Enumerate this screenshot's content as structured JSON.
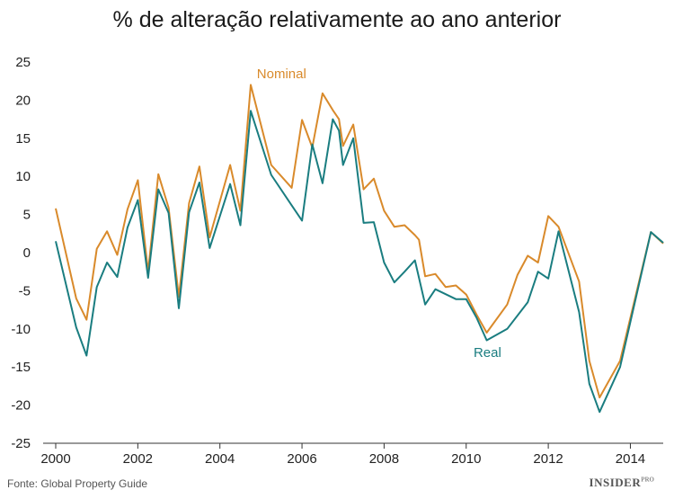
{
  "chart_data": {
    "type": "line",
    "title": "% de alteração relativamente ao ano anterior",
    "xlabel": "",
    "ylabel": "",
    "xlim": [
      2000,
      2014.8
    ],
    "ylim": [
      -25,
      25
    ],
    "x_ticks": [
      2000,
      2002,
      2004,
      2006,
      2008,
      2010,
      2012,
      2014
    ],
    "y_ticks": [
      -25,
      -20,
      -15,
      -10,
      -5,
      0,
      5,
      10,
      15,
      20,
      25
    ],
    "grid": false,
    "series": [
      {
        "name": "Nominal",
        "color": "#d98a2b",
        "points": [
          [
            2000.0,
            5.8
          ],
          [
            2000.5,
            -6.0
          ],
          [
            2000.75,
            -8.8
          ],
          [
            2001.0,
            0.5
          ],
          [
            2001.25,
            2.8
          ],
          [
            2001.5,
            -0.3
          ],
          [
            2001.75,
            5.7
          ],
          [
            2002.0,
            9.5
          ],
          [
            2002.25,
            -2.5
          ],
          [
            2002.5,
            10.3
          ],
          [
            2002.75,
            5.9
          ],
          [
            2003.0,
            -5.8
          ],
          [
            2003.25,
            6.5
          ],
          [
            2003.5,
            11.3
          ],
          [
            2003.75,
            2.0
          ],
          [
            2004.25,
            11.5
          ],
          [
            2004.5,
            5.5
          ],
          [
            2004.75,
            22.0
          ],
          [
            2005.25,
            11.5
          ],
          [
            2005.75,
            8.5
          ],
          [
            2006.0,
            17.4
          ],
          [
            2006.25,
            13.8
          ],
          [
            2006.5,
            20.9
          ],
          [
            2006.75,
            18.7
          ],
          [
            2006.9,
            17.5
          ],
          [
            2007.0,
            14.0
          ],
          [
            2007.25,
            16.8
          ],
          [
            2007.5,
            8.3
          ],
          [
            2007.75,
            9.7
          ],
          [
            2008.0,
            5.5
          ],
          [
            2008.25,
            3.4
          ],
          [
            2008.5,
            3.6
          ],
          [
            2008.75,
            2.3
          ],
          [
            2008.85,
            1.7
          ],
          [
            2009.0,
            -3.1
          ],
          [
            2009.25,
            -2.8
          ],
          [
            2009.5,
            -4.5
          ],
          [
            2009.75,
            -4.3
          ],
          [
            2010.0,
            -5.5
          ],
          [
            2010.25,
            -8.1
          ],
          [
            2010.5,
            -10.5
          ],
          [
            2011.0,
            -6.8
          ],
          [
            2011.25,
            -2.9
          ],
          [
            2011.5,
            -0.4
          ],
          [
            2011.75,
            -1.3
          ],
          [
            2012.0,
            4.8
          ],
          [
            2012.25,
            3.4
          ],
          [
            2012.75,
            -3.8
          ],
          [
            2013.0,
            -14.2
          ],
          [
            2013.25,
            -19.0
          ],
          [
            2013.75,
            -14.2
          ],
          [
            2014.5,
            2.7
          ],
          [
            2014.8,
            1.2
          ]
        ]
      },
      {
        "name": "Real",
        "color": "#1a7d80",
        "points": [
          [
            2000.0,
            1.5
          ],
          [
            2000.5,
            -9.8
          ],
          [
            2000.75,
            -13.5
          ],
          [
            2001.0,
            -4.5
          ],
          [
            2001.25,
            -1.3
          ],
          [
            2001.5,
            -3.2
          ],
          [
            2001.75,
            3.3
          ],
          [
            2002.0,
            6.9
          ],
          [
            2002.25,
            -3.3
          ],
          [
            2002.5,
            8.3
          ],
          [
            2002.75,
            5.2
          ],
          [
            2003.0,
            -7.3
          ],
          [
            2003.25,
            5.3
          ],
          [
            2003.5,
            9.2
          ],
          [
            2003.75,
            0.6
          ],
          [
            2004.25,
            9.0
          ],
          [
            2004.5,
            3.6
          ],
          [
            2004.75,
            18.6
          ],
          [
            2005.25,
            10.2
          ],
          [
            2005.75,
            6.2
          ],
          [
            2006.0,
            4.2
          ],
          [
            2006.25,
            14.2
          ],
          [
            2006.5,
            9.1
          ],
          [
            2006.75,
            17.5
          ],
          [
            2006.9,
            16.0
          ],
          [
            2007.0,
            11.5
          ],
          [
            2007.25,
            15.0
          ],
          [
            2007.5,
            3.9
          ],
          [
            2007.75,
            4.0
          ],
          [
            2008.0,
            -1.3
          ],
          [
            2008.25,
            -3.9
          ],
          [
            2008.5,
            -2.5
          ],
          [
            2008.75,
            -1.0
          ],
          [
            2009.0,
            -6.8
          ],
          [
            2009.25,
            -4.8
          ],
          [
            2009.75,
            -6.1
          ],
          [
            2010.0,
            -6.1
          ],
          [
            2010.25,
            -8.5
          ],
          [
            2010.5,
            -11.5
          ],
          [
            2011.0,
            -10.0
          ],
          [
            2011.5,
            -6.5
          ],
          [
            2011.75,
            -2.5
          ],
          [
            2012.0,
            -3.4
          ],
          [
            2012.25,
            2.8
          ],
          [
            2012.75,
            -7.8
          ],
          [
            2013.0,
            -17.2
          ],
          [
            2013.25,
            -20.9
          ],
          [
            2013.75,
            -15.0
          ],
          [
            2014.5,
            2.7
          ],
          [
            2014.8,
            1.3
          ]
        ]
      }
    ],
    "labels": {
      "nominal": "Nominal",
      "real": "Real"
    }
  },
  "footer": {
    "source": "Fonte: Global Property Guide",
    "brand": "INSIDER",
    "brand_sup": "PRO"
  }
}
